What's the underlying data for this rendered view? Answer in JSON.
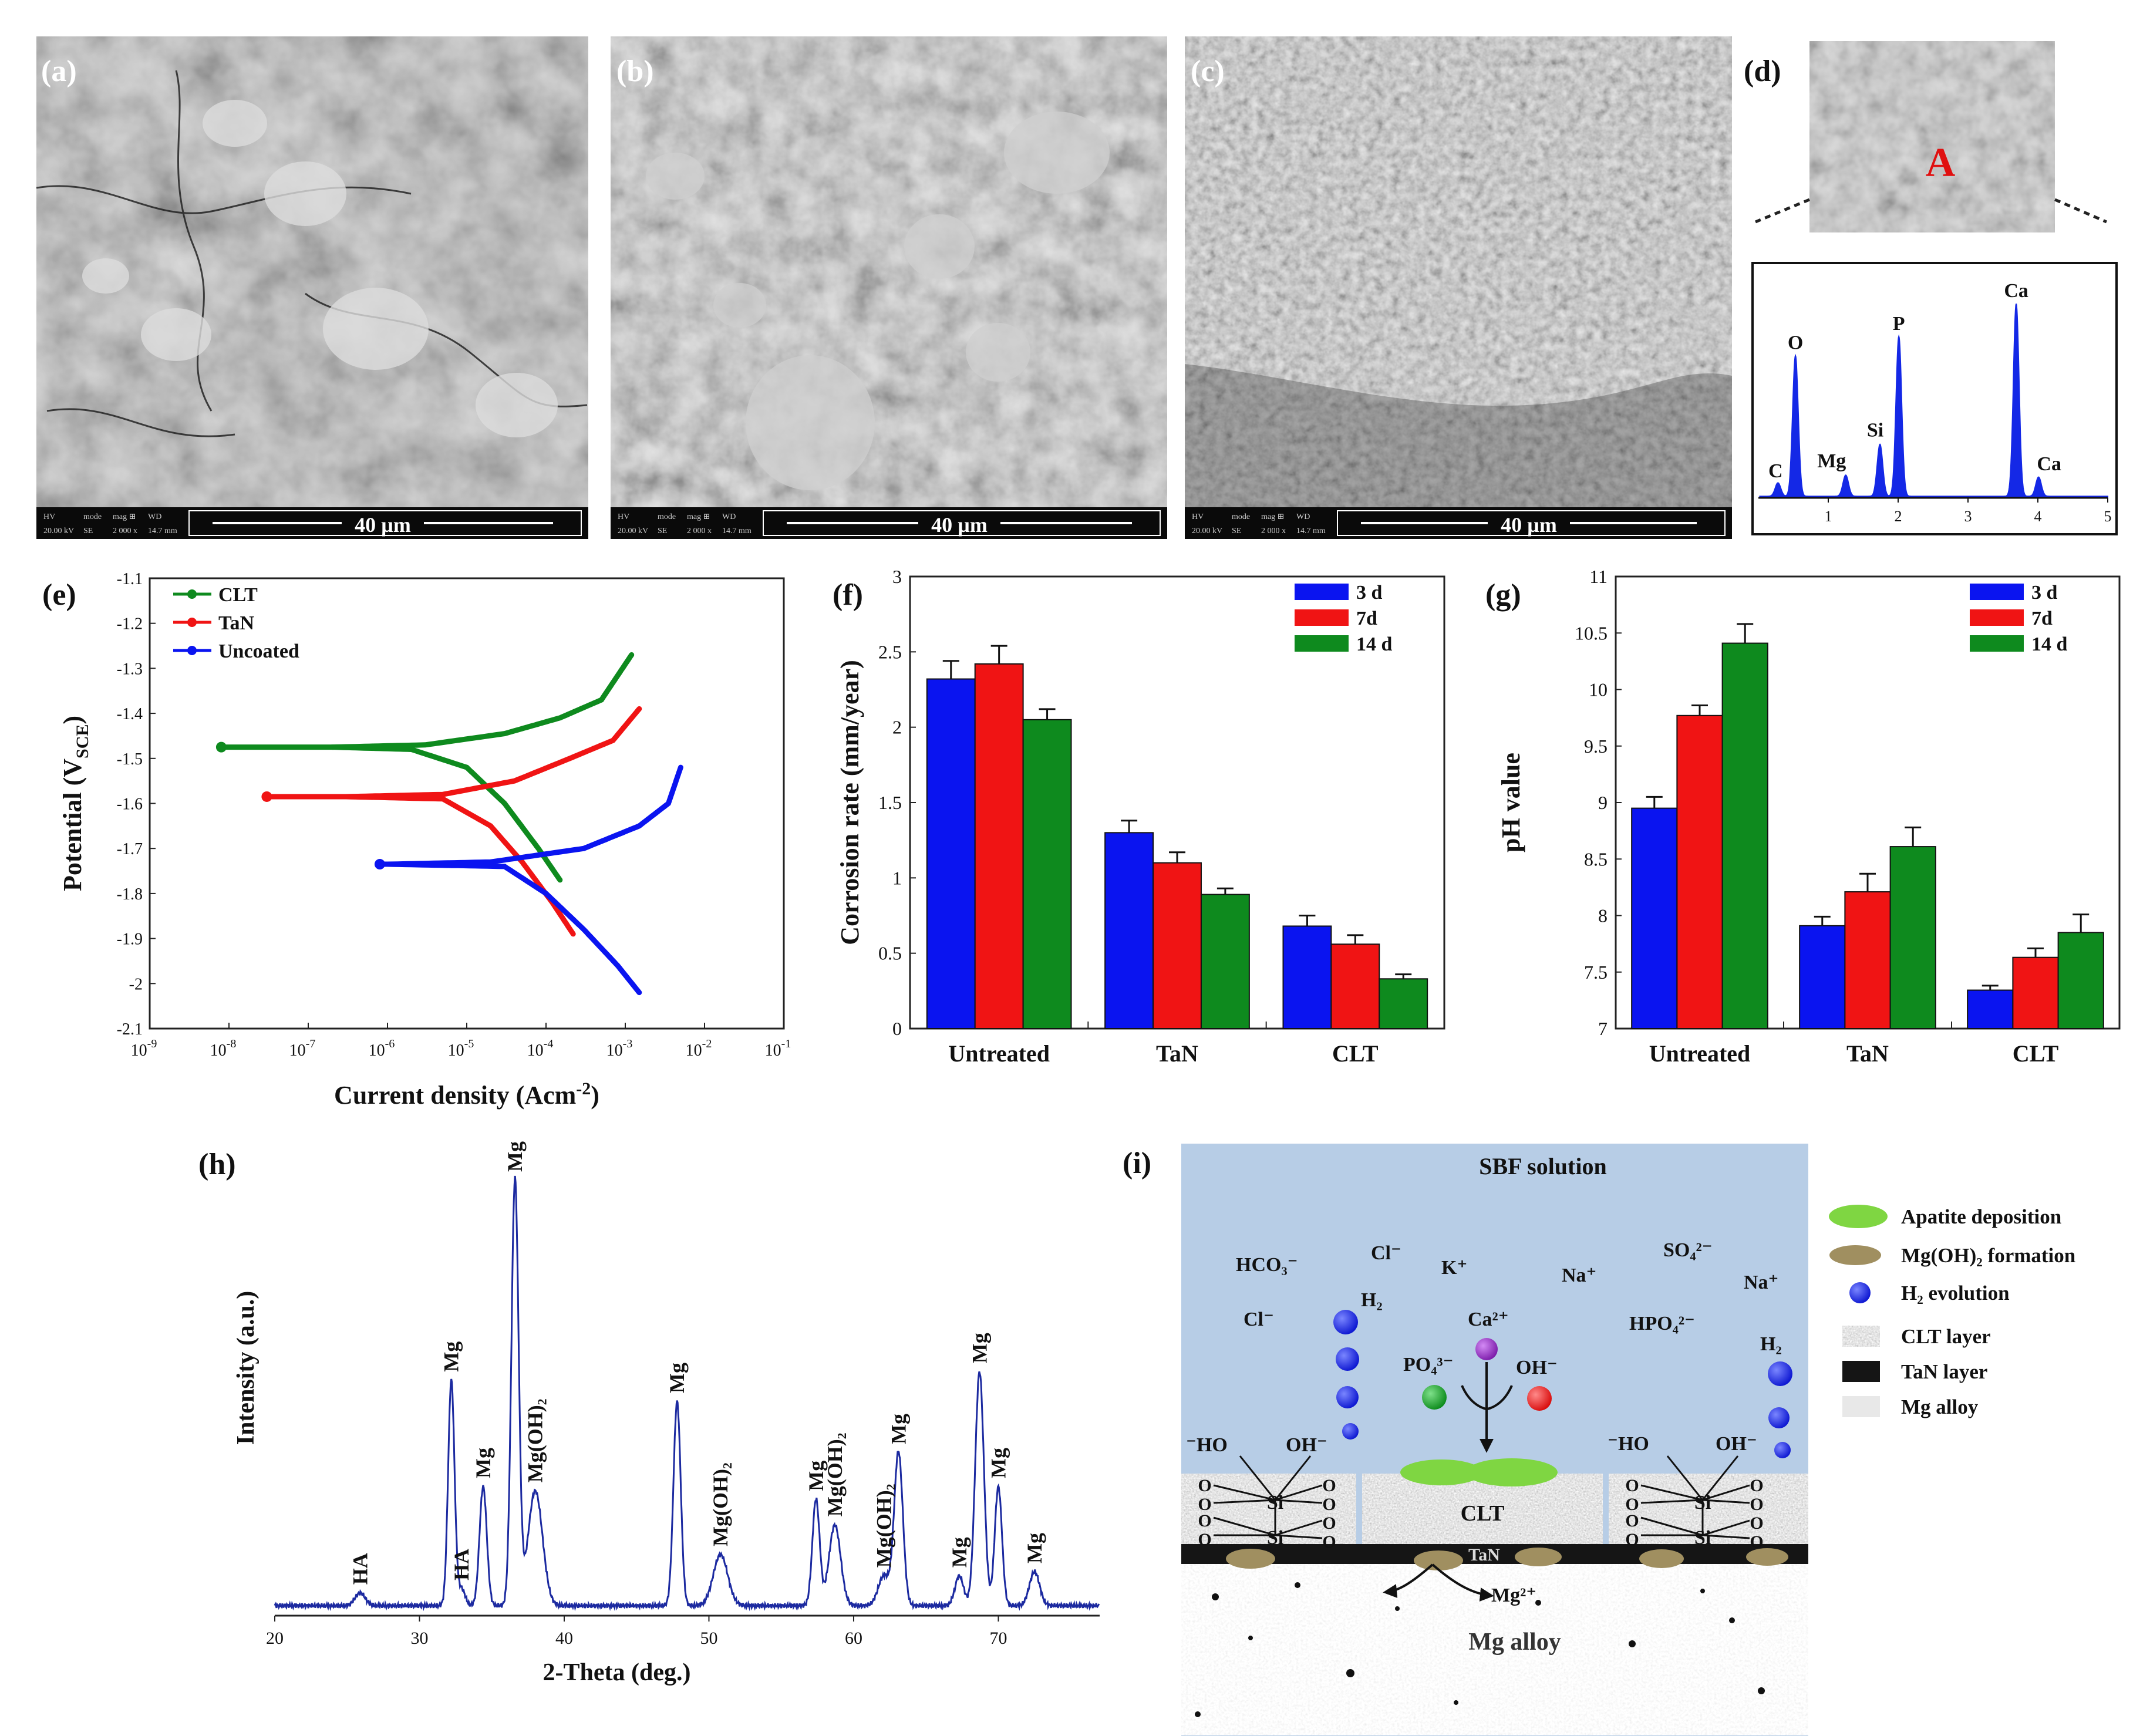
{
  "panel_labels": {
    "a": "(a)",
    "b": "(b)",
    "c": "(c)",
    "d": "(d)",
    "e": "(e)",
    "f": "(f)",
    "g": "(g)",
    "h": "(h)",
    "i": "(i)"
  },
  "sem": {
    "scale_text": "40 µm",
    "info_headers": [
      "HV",
      "mode",
      "mag ⊞",
      "WD"
    ],
    "info_values": [
      "20.00 kV",
      "SE",
      "2 000 x",
      "14.7 mm"
    ],
    "spot_label": "A"
  },
  "colors": {
    "blue": "#0a14f0",
    "red": "#f01414",
    "green": "#0e8a1e",
    "xrd": "#1c2aa0",
    "eds": "#1428e6",
    "sbf": "#b7cde6"
  },
  "chart_data": [
    {
      "panel": "d",
      "type": "line",
      "x_ticks": [
        "1",
        "2",
        "3",
        "4",
        "5"
      ],
      "xlim": [
        0,
        5
      ],
      "peaks": [
        {
          "label": "C",
          "x": 0.28,
          "height": 0.07
        },
        {
          "label": "O",
          "x": 0.53,
          "height": 0.73
        },
        {
          "label": "Mg",
          "x": 1.25,
          "height": 0.11
        },
        {
          "label": "Si",
          "x": 1.74,
          "height": 0.27
        },
        {
          "label": "P",
          "x": 2.01,
          "height": 0.83
        },
        {
          "label": "Ca",
          "x": 3.69,
          "height": 1.0
        },
        {
          "label": "Ca",
          "x": 4.01,
          "height": 0.1
        }
      ]
    },
    {
      "panel": "e",
      "type": "line",
      "xlabel": "Current density (Acm",
      "xlabel_sup": "-2",
      "xlabel_end": ")",
      "ylabel": "Potential (V",
      "ylabel_sub": "SCE",
      "ylabel_end": ")",
      "x_scale": "log",
      "xlim": [
        1e-09,
        0.1
      ],
      "ylim": [
        -2.1,
        -1.1
      ],
      "y_ticks": [
        "-1.1",
        "-1.2",
        "-1.3",
        "-1.4",
        "-1.5",
        "-1.6",
        "-1.7",
        "-1.8",
        "-1.9",
        "-2",
        "-2.1"
      ],
      "x_tick_labels": [
        {
          "b": "10",
          "e": "-9"
        },
        {
          "b": "10",
          "e": "-8"
        },
        {
          "b": "10",
          "e": "-7"
        },
        {
          "b": "10",
          "e": "-6"
        },
        {
          "b": "10",
          "e": "-5"
        },
        {
          "b": "10",
          "e": "-4"
        },
        {
          "b": "10",
          "e": "-3"
        },
        {
          "b": "10",
          "e": "-2"
        },
        {
          "b": "10",
          "e": "-1"
        }
      ],
      "legend": "top-left",
      "series": [
        {
          "name": "CLT",
          "color": "#0e8a1e",
          "ecorr": -1.475,
          "icorr_min": 8e-09,
          "anodic": [
            [
              2e-07,
              -1.475
            ],
            [
              3e-06,
              -1.47
            ],
            [
              3e-05,
              -1.445
            ],
            [
              0.00015,
              -1.41
            ],
            [
              0.0005,
              -1.37
            ],
            [
              0.0012,
              -1.27
            ]
          ],
          "cathodic": [
            [
              2e-06,
              -1.48
            ],
            [
              1e-05,
              -1.52
            ],
            [
              3e-05,
              -1.6
            ],
            [
              8e-05,
              -1.7
            ],
            [
              0.00015,
              -1.77
            ]
          ]
        },
        {
          "name": "TaN",
          "color": "#f01414",
          "ecorr": -1.585,
          "icorr_min": 3e-08,
          "anodic": [
            [
              3e-07,
              -1.585
            ],
            [
              5e-06,
              -1.58
            ],
            [
              4e-05,
              -1.55
            ],
            [
              0.0002,
              -1.5
            ],
            [
              0.0007,
              -1.46
            ],
            [
              0.0015,
              -1.39
            ]
          ],
          "cathodic": [
            [
              5e-06,
              -1.59
            ],
            [
              2e-05,
              -1.65
            ],
            [
              5e-05,
              -1.73
            ],
            [
              0.00012,
              -1.82
            ],
            [
              0.00022,
              -1.89
            ]
          ]
        },
        {
          "name": "Uncoated",
          "color": "#0a14f0",
          "ecorr": -1.735,
          "icorr_min": 8e-07,
          "anodic": [
            [
              1e-06,
              -1.735
            ],
            [
              2e-05,
              -1.73
            ],
            [
              0.0003,
              -1.7
            ],
            [
              0.0015,
              -1.65
            ],
            [
              0.0035,
              -1.6
            ],
            [
              0.005,
              -1.52
            ]
          ],
          "cathodic": [
            [
              3e-05,
              -1.74
            ],
            [
              0.0001,
              -1.8
            ],
            [
              0.0003,
              -1.88
            ],
            [
              0.0008,
              -1.96
            ],
            [
              0.0015,
              -2.02
            ]
          ]
        }
      ]
    },
    {
      "panel": "f",
      "type": "bar",
      "ylabel": "Corrosion rate (mm/year)",
      "categories": [
        "Untreated",
        "TaN",
        "CLT"
      ],
      "ylim": [
        0,
        3
      ],
      "y_ticks": [
        "0",
        "0.5",
        "1",
        "1.5",
        "2",
        "2.5",
        "3"
      ],
      "legend": "top-right",
      "series": [
        {
          "name": "3 d",
          "color": "#0a14f0",
          "values": [
            2.32,
            1.3,
            0.68
          ],
          "errors": [
            0.12,
            0.08,
            0.07
          ]
        },
        {
          "name": "7d",
          "color": "#f01414",
          "values": [
            2.42,
            1.1,
            0.56
          ],
          "errors": [
            0.12,
            0.07,
            0.06
          ]
        },
        {
          "name": "14 d",
          "color": "#0e8a1e",
          "values": [
            2.05,
            0.89,
            0.33
          ],
          "errors": [
            0.07,
            0.04,
            0.03
          ]
        }
      ]
    },
    {
      "panel": "g",
      "type": "bar",
      "ylabel": "pH value",
      "categories": [
        "Untreated",
        "TaN",
        "CLT"
      ],
      "ylim": [
        7,
        11
      ],
      "y_ticks": [
        "7",
        "7.5",
        "8",
        "8.5",
        "9",
        "9.5",
        "10",
        "10.5",
        "11"
      ],
      "legend": "top-right",
      "series": [
        {
          "name": "3 d",
          "color": "#0a14f0",
          "values": [
            8.95,
            7.91,
            7.34
          ],
          "errors": [
            0.1,
            0.08,
            0.04
          ]
        },
        {
          "name": "7d",
          "color": "#f01414",
          "values": [
            9.77,
            8.21,
            7.63
          ],
          "errors": [
            0.09,
            0.16,
            0.08
          ]
        },
        {
          "name": "14 d",
          "color": "#0e8a1e",
          "values": [
            10.41,
            8.61,
            7.85
          ],
          "errors": [
            0.17,
            0.17,
            0.16
          ]
        }
      ]
    },
    {
      "panel": "h",
      "type": "line",
      "xlabel": "2-Theta (deg.)",
      "ylabel": "Intensity (a.u.)",
      "xlim": [
        20,
        77
      ],
      "x_ticks": [
        "20",
        "30",
        "40",
        "50",
        "60",
        "70"
      ],
      "peaks": [
        {
          "label": "HA",
          "x": 25.9,
          "height": 0.03,
          "width": 0.35
        },
        {
          "label": "Mg",
          "x": 32.2,
          "height": 0.53,
          "width": 0.22
        },
        {
          "label": "HA",
          "x": 32.9,
          "height": 0.04,
          "width": 0.25
        },
        {
          "label": "Mg",
          "x": 34.4,
          "height": 0.28,
          "width": 0.25
        },
        {
          "label": "Mg",
          "x": 36.6,
          "height": 1.0,
          "width": 0.25
        },
        {
          "label": "Mg(OH)₂",
          "x": 38.0,
          "height": 0.27,
          "width": 0.5
        },
        {
          "label": "Mg",
          "x": 47.8,
          "height": 0.48,
          "width": 0.25
        },
        {
          "label": "Mg(OH)₂",
          "x": 50.8,
          "height": 0.12,
          "width": 0.5
        },
        {
          "label": "Mg",
          "x": 57.4,
          "height": 0.25,
          "width": 0.25
        },
        {
          "label": "Mg(OH)₂",
          "x": 58.7,
          "height": 0.19,
          "width": 0.4
        },
        {
          "label": "Mg(OH)₂",
          "x": 62.1,
          "height": 0.07,
          "width": 0.4
        },
        {
          "label": "Mg",
          "x": 63.1,
          "height": 0.36,
          "width": 0.3
        },
        {
          "label": "Mg",
          "x": 67.3,
          "height": 0.07,
          "width": 0.3
        },
        {
          "label": "Mg",
          "x": 68.7,
          "height": 0.55,
          "width": 0.3
        },
        {
          "label": "Mg",
          "x": 70.0,
          "height": 0.28,
          "width": 0.25
        },
        {
          "label": "Mg",
          "x": 72.5,
          "height": 0.08,
          "width": 0.35
        }
      ]
    }
  ],
  "schematic": {
    "title": "SBF solution",
    "ions": {
      "hco3": "HCO₃⁻",
      "cl1": "Cl⁻",
      "cl2": "Cl⁻",
      "k": "K⁺",
      "na1": "Na⁺",
      "so4": "SO₄²⁻",
      "na2": "Na⁺",
      "h2a": "H₂",
      "h2b": "H₂",
      "ca": "Ca²⁺",
      "po4": "PO₄³⁻",
      "oh": "OH⁻",
      "hpo4": "HPO₄²⁻",
      "ho_l": "⁻HO",
      "oh_l": "OH⁻",
      "ho_r": "⁻HO",
      "oh_r": "OH⁻",
      "mg2": "Mg²⁺"
    },
    "layer_clt": "CLT",
    "layer_tan": "TaN",
    "layer_alloy": "Mg alloy",
    "si": "Si",
    "o": "O",
    "legend": [
      {
        "label": "Apatite deposition",
        "icon": "apatite-icon"
      },
      {
        "label": "Mg(OH)₂ formation",
        "icon": "mgoh2-icon"
      },
      {
        "label": "H₂ evolution",
        "icon": "h2-bubble-icon"
      },
      {
        "label": "CLT layer",
        "icon": "clt-swatch-icon"
      },
      {
        "label": "TaN layer",
        "icon": "tan-swatch-icon"
      },
      {
        "label": "Mg alloy",
        "icon": "alloy-swatch-icon"
      }
    ]
  }
}
